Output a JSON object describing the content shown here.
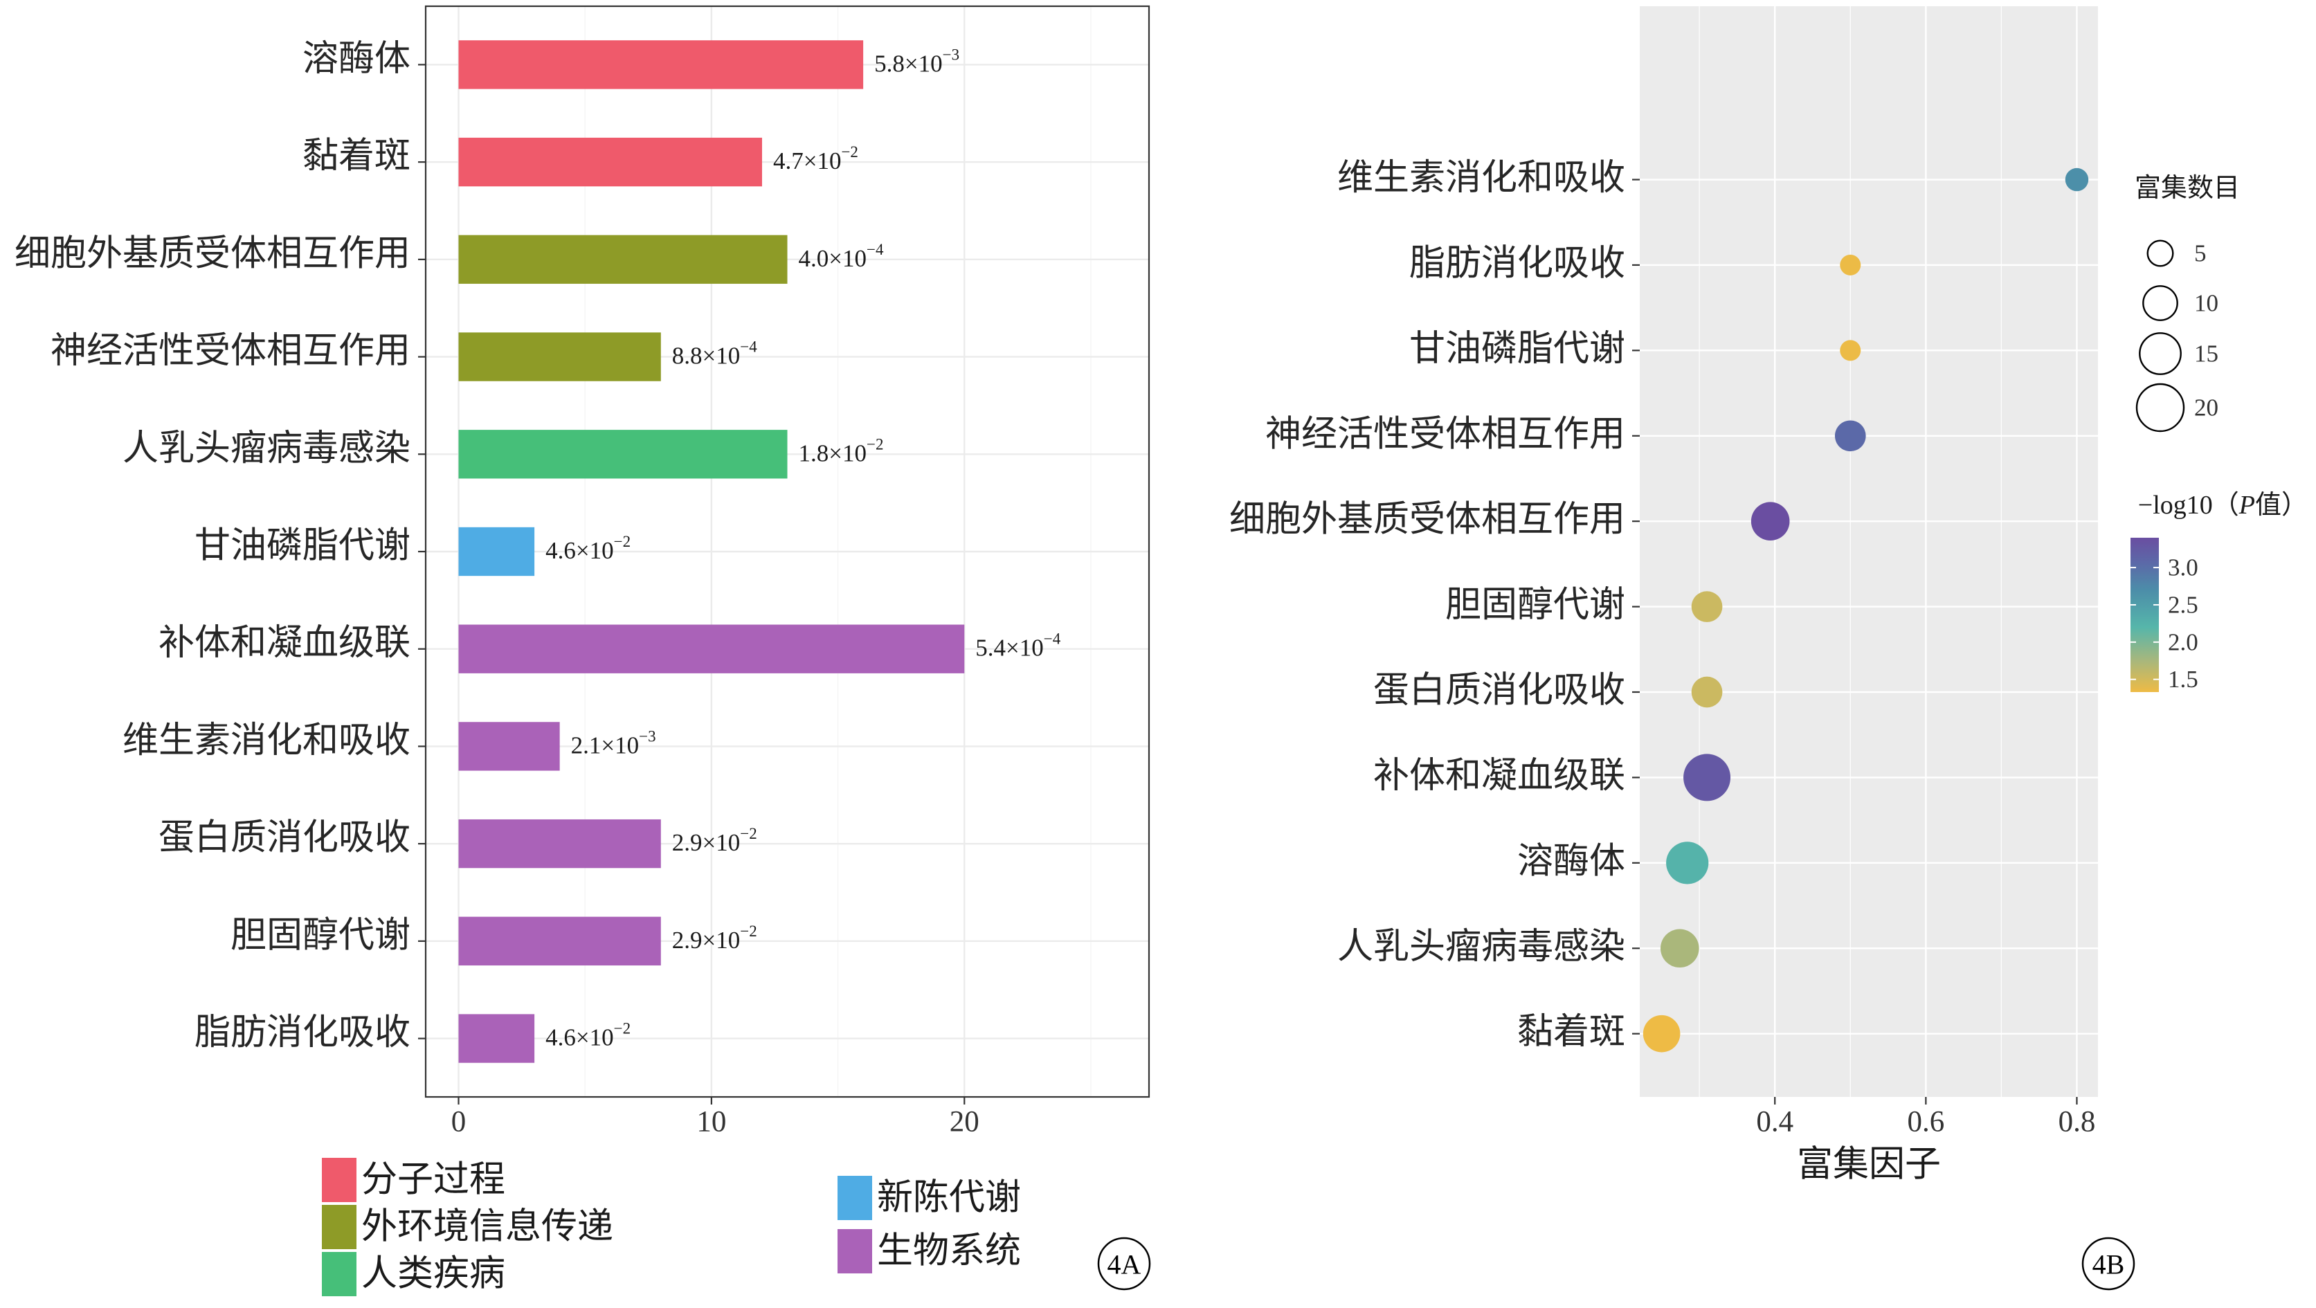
{
  "chart_data": [
    {
      "type": "bar",
      "orientation": "horizontal",
      "panel_label": "4A",
      "categories": [
        "溶酶体",
        "黏着斑",
        "细胞外基质受体相互作用",
        "神经活性受体相互作用",
        "人乳头瘤病毒感染",
        "甘油磷脂代谢",
        "补体和凝血级联",
        "维生素消化和吸收",
        "蛋白质消化吸收",
        "胆固醇代谢",
        "脂肪消化吸收"
      ],
      "values": [
        16,
        12,
        13,
        8,
        13,
        3,
        20,
        4,
        8,
        8,
        3
      ],
      "groups": [
        "分子过程",
        "分子过程",
        "外环境信息传递",
        "外环境信息传递",
        "人类疾病",
        "新陈代谢",
        "生物系统",
        "生物系统",
        "生物系统",
        "生物系统",
        "生物系统"
      ],
      "value_labels": [
        {
          "base": "5.8×10",
          "exp": "−3"
        },
        {
          "base": "4.7×10",
          "exp": "−2"
        },
        {
          "base": "4.0×10",
          "exp": "−4"
        },
        {
          "base": "8.8×10",
          "exp": "−4"
        },
        {
          "base": "1.8×10",
          "exp": "−2"
        },
        {
          "base": "4.6×10",
          "exp": "−2"
        },
        {
          "base": "5.4×10",
          "exp": "−4"
        },
        {
          "base": "2.1×10",
          "exp": "−3"
        },
        {
          "base": "2.9×10",
          "exp": "−2"
        },
        {
          "base": "2.9×10",
          "exp": "−2"
        },
        {
          "base": "4.6×10",
          "exp": "−2"
        }
      ],
      "xticks": [
        0,
        10,
        20
      ],
      "xtick_labels": [
        "0",
        "10",
        "20"
      ],
      "minor_xticks": [
        5,
        15,
        25
      ],
      "xlim": [
        -1.3,
        27.3
      ],
      "grid": true,
      "legend_position": "bottom",
      "legend": [
        {
          "name": "分子过程",
          "color": "#EF5A6B"
        },
        {
          "name": "外环境信息传递",
          "color": "#8E9B27"
        },
        {
          "name": "人类疾病",
          "color": "#46BF79"
        },
        {
          "name": "新陈代谢",
          "color": "#4FACE4"
        },
        {
          "name": "生物系统",
          "color": "#AA62B8"
        }
      ]
    },
    {
      "type": "scatter",
      "panel_label": "4B",
      "categories": [
        "维生素消化和吸收",
        "脂肪消化吸收",
        "甘油磷脂代谢",
        "神经活性受体相互作用",
        "细胞外基质受体相互作用",
        "胆固醇代谢",
        "蛋白质消化吸收",
        "补体和凝血级联",
        "溶酶体",
        "人乳头瘤病毒感染",
        "黏着斑"
      ],
      "x": [
        0.8,
        0.5,
        0.5,
        0.5,
        0.394,
        0.31,
        0.31,
        0.31,
        0.284,
        0.274,
        0.25
      ],
      "size": [
        4,
        3,
        3,
        8,
        13,
        8,
        8,
        20,
        16,
        13,
        12
      ],
      "neg_log10_p": [
        2.68,
        1.34,
        1.34,
        3.06,
        3.4,
        1.54,
        1.54,
        3.27,
        2.24,
        1.74,
        1.33
      ],
      "xlabel": "富集因子",
      "xticks": [
        0.4,
        0.6,
        0.8
      ],
      "xtick_labels": [
        "0.4",
        "0.6",
        "0.8"
      ],
      "minor_xticks": [
        0.3,
        0.5,
        0.7
      ],
      "xlim": [
        0.221,
        0.828
      ],
      "grid": true,
      "legend_position": "right",
      "size_legend": {
        "title": "富集数目",
        "values": [
          5,
          10,
          15,
          20
        ],
        "labels": [
          "5",
          "10",
          "15",
          "20"
        ]
      },
      "color_legend": {
        "title": {
          "prefix": "−log10（",
          "italic": "P",
          "suffix": "值）"
        },
        "ticks": [
          3.0,
          2.5,
          2.0,
          1.5
        ],
        "tick_labels": [
          "3.0",
          "2.5",
          "2.0",
          "1.5"
        ],
        "gradient_stops": [
          {
            "value": 1.33,
            "color": "#EEBB45"
          },
          {
            "value": 1.75,
            "color": "#A8B77C"
          },
          {
            "value": 2.2,
            "color": "#56B6AA"
          },
          {
            "value": 2.7,
            "color": "#4C8DA9"
          },
          {
            "value": 3.05,
            "color": "#5B6AA8"
          },
          {
            "value": 3.4,
            "color": "#6A4EA1"
          }
        ]
      }
    }
  ]
}
